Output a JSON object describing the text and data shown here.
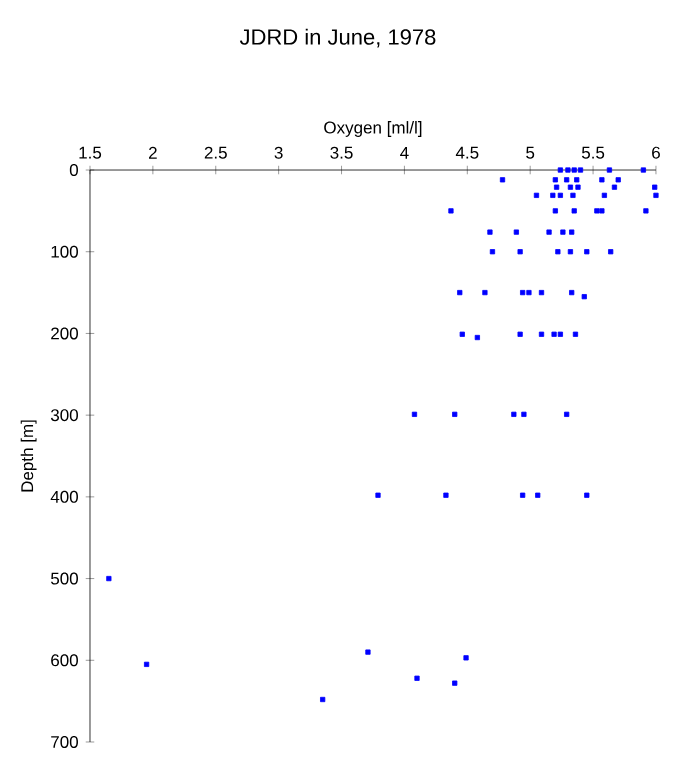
{
  "chart_data": {
    "type": "scatter",
    "title": "JDRD in June, 1978",
    "xlabel": "Oxygen [ml/l]",
    "ylabel": "Depth [m]",
    "x": [
      5.24,
      5.3,
      5.35,
      5.4,
      5.63,
      5.9,
      4.78,
      5.2,
      5.29,
      5.37,
      5.57,
      5.7,
      5.21,
      5.32,
      5.38,
      5.67,
      5.99,
      5.05,
      5.18,
      5.24,
      5.34,
      5.59,
      6.0,
      4.37,
      5.2,
      5.35,
      5.53,
      5.57,
      5.92,
      4.68,
      4.89,
      5.15,
      5.26,
      5.33,
      4.7,
      4.92,
      5.22,
      5.32,
      5.45,
      5.64,
      4.44,
      4.64,
      4.94,
      4.99,
      5.09,
      5.33,
      5.43,
      4.46,
      4.58,
      4.92,
      5.09,
      5.19,
      5.24,
      5.36,
      4.08,
      4.4,
      4.87,
      4.95,
      5.29,
      3.79,
      4.33,
      4.94,
      5.06,
      5.45,
      1.65,
      3.71,
      4.49,
      4.1,
      4.4,
      1.95,
      3.35
    ],
    "values": [
      0,
      0,
      0,
      0,
      0,
      0,
      12,
      12,
      12,
      12,
      12,
      12,
      21,
      21,
      21,
      21,
      21,
      31,
      31,
      31,
      31,
      31,
      31,
      50,
      50,
      50,
      50,
      50,
      50,
      76,
      76,
      76,
      76,
      76,
      100,
      100,
      100,
      100,
      100,
      100,
      150,
      150,
      150,
      150,
      150,
      150,
      155,
      201,
      205,
      201,
      201,
      201,
      201,
      201,
      299,
      299,
      299,
      299,
      299,
      398,
      398,
      398,
      398,
      398,
      500,
      590,
      597,
      622,
      628,
      605,
      648
    ],
    "color": "#0000ff",
    "marker": "square",
    "xlim": [
      1.5,
      6
    ],
    "ylim": [
      700,
      0
    ],
    "xticks": [
      1.5,
      2,
      2.5,
      3,
      3.5,
      4,
      4.5,
      5,
      5.5,
      6
    ],
    "yticks": [
      0,
      100,
      200,
      300,
      400,
      500,
      600,
      700
    ],
    "grid": false
  }
}
